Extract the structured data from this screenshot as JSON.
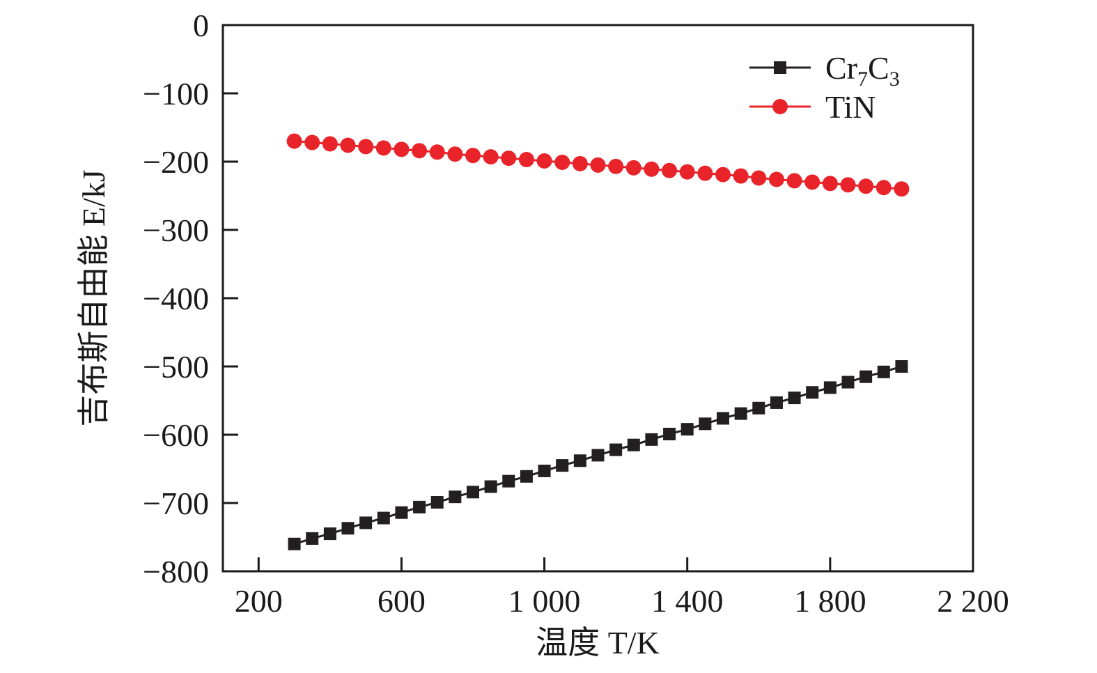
{
  "chart_data": {
    "type": "line",
    "title": "",
    "xlabel": "温度 T/K",
    "ylabel": "吉布斯自由能 E/kJ",
    "xlim": [
      100,
      2200
    ],
    "ylim": [
      -800,
      0
    ],
    "xticks": [
      200,
      600,
      1000,
      1400,
      1800,
      2200
    ],
    "xtick_labels": [
      "200",
      "600",
      "1 000",
      "1 400",
      "1 800",
      "2 200"
    ],
    "yticks": [
      0,
      -100,
      -200,
      -300,
      -400,
      -500,
      -600,
      -700,
      -800
    ],
    "ytick_labels": [
      "0",
      "−100",
      "−200",
      "−300",
      "−400",
      "−500",
      "−600",
      "−700",
      "−800"
    ],
    "grid": false,
    "legend_position": "top-right",
    "x": [
      300,
      350,
      400,
      450,
      500,
      550,
      600,
      650,
      700,
      750,
      800,
      850,
      900,
      950,
      1000,
      1050,
      1100,
      1150,
      1200,
      1250,
      1300,
      1350,
      1400,
      1450,
      1500,
      1550,
      1600,
      1650,
      1700,
      1750,
      1800,
      1850,
      1900,
      1950,
      2000
    ],
    "series": [
      {
        "name": "Cr7C3",
        "color": "#231f20",
        "marker": "square",
        "values": [
          -760,
          -752,
          -745,
          -737,
          -729,
          -722,
          -714,
          -706,
          -699,
          -691,
          -684,
          -676,
          -668,
          -661,
          -653,
          -645,
          -638,
          -630,
          -622,
          -615,
          -607,
          -599,
          -592,
          -584,
          -576,
          -569,
          -561,
          -553,
          -546,
          -538,
          -531,
          -523,
          -515,
          -508,
          -500
        ]
      },
      {
        "name": "TiN",
        "color": "#e8232a",
        "marker": "circle",
        "values": [
          -170,
          -172,
          -174,
          -176,
          -178,
          -180,
          -182,
          -184,
          -186,
          -189,
          -191,
          -193,
          -195,
          -197,
          -199,
          -201,
          -203,
          -205,
          -207,
          -209,
          -211,
          -213,
          -215,
          -217,
          -219,
          -221,
          -224,
          -226,
          -228,
          -230,
          -232,
          -234,
          -236,
          -238,
          -240
        ]
      }
    ]
  }
}
